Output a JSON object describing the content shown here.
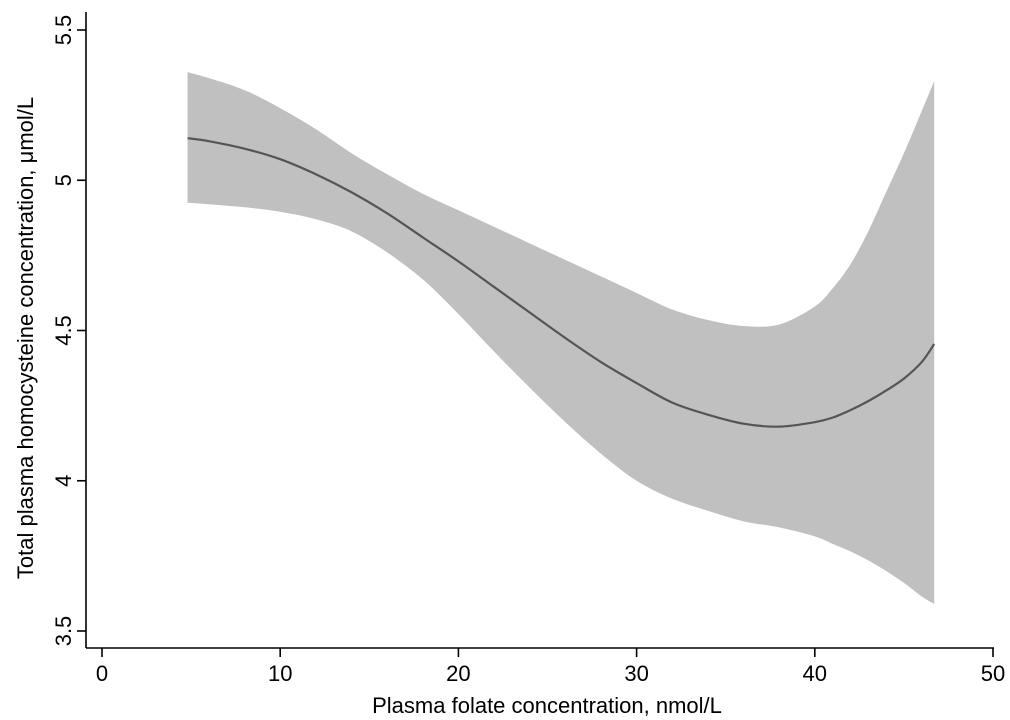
{
  "chart_data": {
    "type": "line",
    "title": "",
    "xlabel": "Plasma folate concentration, nmol/L",
    "ylabel": "Total plasma homocysteine concentration, μmol/L",
    "xlim": [
      0,
      50
    ],
    "ylim": [
      3.5,
      5.5
    ],
    "x_ticks": [
      0,
      10,
      20,
      30,
      40,
      50
    ],
    "x_tick_labels": [
      "0",
      "10",
      "20",
      "30",
      "40",
      "50"
    ],
    "y_ticks": [
      3.5,
      4,
      4.5,
      5,
      5.5
    ],
    "y_tick_labels": [
      "3.5",
      "4",
      "4.5",
      "5",
      "5.5"
    ],
    "grid": false,
    "legend": "none",
    "series": [
      {
        "kind": "fitted-line",
        "color": "#555555",
        "x": [
          4.8,
          6,
          8,
          10,
          12,
          14,
          16,
          18,
          20,
          22,
          24,
          26,
          28,
          30,
          32,
          34,
          36,
          38,
          40,
          41,
          42,
          43,
          44,
          45,
          46,
          46.7
        ],
        "y": [
          5.14,
          5.13,
          5.105,
          5.07,
          5.02,
          4.96,
          4.89,
          4.81,
          4.73,
          4.645,
          4.56,
          4.475,
          4.395,
          4.325,
          4.26,
          4.22,
          4.19,
          4.18,
          4.195,
          4.21,
          4.235,
          4.265,
          4.3,
          4.34,
          4.395,
          4.455
        ]
      },
      {
        "kind": "confidence-band",
        "color": "#c0c0c0",
        "x": [
          4.8,
          6,
          8,
          10,
          12,
          14,
          16,
          18,
          20,
          22,
          24,
          26,
          28,
          30,
          32,
          34,
          36,
          38,
          40,
          41,
          42,
          43,
          44,
          45,
          46,
          46.7
        ],
        "upper": [
          5.36,
          5.34,
          5.3,
          5.24,
          5.17,
          5.09,
          5.02,
          4.955,
          4.9,
          4.845,
          4.79,
          4.735,
          4.68,
          4.625,
          4.57,
          4.535,
          4.515,
          4.52,
          4.58,
          4.64,
          4.72,
          4.83,
          4.96,
          5.09,
          5.23,
          5.33
        ],
        "lower": [
          4.925,
          4.92,
          4.91,
          4.895,
          4.87,
          4.83,
          4.76,
          4.67,
          4.555,
          4.43,
          4.31,
          4.195,
          4.09,
          4.0,
          3.94,
          3.9,
          3.865,
          3.845,
          3.815,
          3.79,
          3.765,
          3.735,
          3.7,
          3.66,
          3.615,
          3.59
        ]
      }
    ]
  }
}
